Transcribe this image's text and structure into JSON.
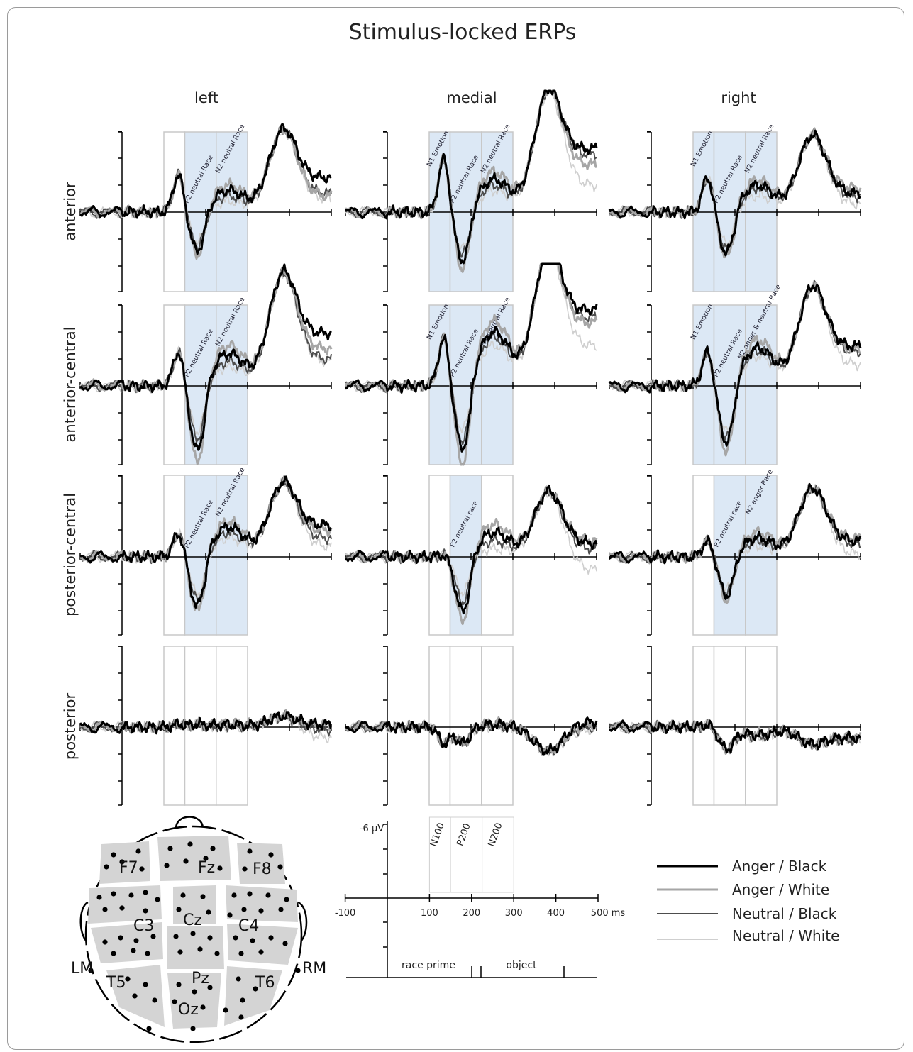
{
  "title": "Stimulus-locked ERPs",
  "columns": [
    "left",
    "medial",
    "right"
  ],
  "rows": [
    "anterior",
    "anterior-central",
    "posterior-central",
    "posterior"
  ],
  "colors": {
    "anger_black": "#000000",
    "anger_white": "#a6a6a6",
    "neutral_black": "#4d4d4d",
    "neutral_white": "#cfcfcf",
    "window_fill": "#dce8f5",
    "window_stroke": "#c8c8c8"
  },
  "legend": {
    "items": [
      {
        "label": "Anger / Black",
        "color": "#000000",
        "width": 3
      },
      {
        "label": "Anger / White",
        "color": "#a6a6a6",
        "width": 3
      },
      {
        "label": "Neutral / Black",
        "color": "#4d4d4d",
        "width": 2
      },
      {
        "label": "Neutral / White",
        "color": "#cfcfcf",
        "width": 2
      }
    ]
  },
  "scale_key": {
    "amplitude_label": "-6 µV",
    "x_ticks": [
      "-100",
      "100",
      "200",
      "300",
      "400",
      "500 ms"
    ],
    "windows": [
      "N100",
      "P200",
      "N200"
    ],
    "segments": [
      "race prime",
      "object"
    ]
  },
  "electrode_map": {
    "labels": [
      "F7",
      "Fz",
      "F8",
      "C3",
      "Cz",
      "C4",
      "LM",
      "T5",
      "Pz",
      "T6",
      "RM",
      "Oz"
    ]
  },
  "chart_data": {
    "type": "line",
    "xlabel": "",
    "ylabel": "",
    "x_unit": "ms",
    "y_unit": "µV",
    "xlim": [
      -100,
      500
    ],
    "ylim": [
      -6,
      3
    ],
    "y_axis": "negative up",
    "windows_ms": {
      "N1": [
        100,
        150
      ],
      "P2": [
        150,
        225
      ],
      "N2": [
        225,
        300
      ]
    },
    "series": [
      {
        "name": "Anger / Black"
      },
      {
        "name": "Anger / White"
      },
      {
        "name": "Neutral / Black"
      },
      {
        "name": "Neutral / White"
      }
    ],
    "panels": [
      {
        "row": "anterior",
        "column": "left",
        "highlighted": [
          "P2",
          "N2"
        ],
        "annotations": [
          {
            "window": "P2",
            "text": "P2 neutral Race"
          },
          {
            "window": "N2",
            "text": "N2 neutral Race"
          }
        ],
        "peaks": {
          "n1": 1.4,
          "p2": 1.5,
          "n2": 0.8,
          "late": 3.0
        },
        "ends": [
          1.3,
          0.6,
          0.7,
          0.5
        ],
        "shifts": [
          0,
          0.2,
          -0.2,
          -0.4
        ]
      },
      {
        "row": "anterior",
        "column": "medial",
        "highlighted": [
          "N1",
          "P2",
          "N2"
        ],
        "annotations": [
          {
            "window": "N1",
            "text": "N1 Emotion"
          },
          {
            "window": "P2",
            "text": "P2 neutral Race"
          },
          {
            "window": "N2",
            "text": "N2 neutral Race"
          }
        ],
        "peaks": {
          "n1": 2.0,
          "p2": 1.9,
          "n2": 1.2,
          "late": 4.4
        },
        "ends": [
          2.4,
          1.8,
          2.2,
          1.0
        ],
        "shifts": [
          0,
          0.3,
          -0.2,
          -0.4
        ]
      },
      {
        "row": "anterior",
        "column": "right",
        "highlighted": [
          "N1",
          "P2",
          "N2"
        ],
        "annotations": [
          {
            "window": "N1",
            "text": "N1 Emotion"
          },
          {
            "window": "P2",
            "text": "P2 neutral Race"
          },
          {
            "window": "N2",
            "text": "N2 neutral Race"
          }
        ],
        "peaks": {
          "n1": 1.3,
          "p2": 1.6,
          "n2": 1.0,
          "late": 2.8
        },
        "ends": [
          0.7,
          0.9,
          0.6,
          0.3
        ],
        "shifts": [
          0,
          0.2,
          -0.1,
          -0.4
        ]
      },
      {
        "row": "anterior-central",
        "column": "left",
        "highlighted": [
          "P2",
          "N2"
        ],
        "annotations": [
          {
            "window": "P2",
            "text": "P2 neutral Race"
          },
          {
            "window": "N2",
            "text": "N2 neutral Race"
          }
        ],
        "peaks": {
          "n1": 1.3,
          "p2": 2.5,
          "n2": 1.2,
          "late": 4.1
        },
        "ends": [
          2.0,
          1.4,
          1.0,
          0.9
        ],
        "shifts": [
          0,
          0.3,
          -0.3,
          -0.5
        ]
      },
      {
        "row": "anterior-central",
        "column": "medial",
        "highlighted": [
          "N1",
          "P2",
          "N2"
        ],
        "annotations": [
          {
            "window": "N1",
            "text": "N1 Emotion"
          },
          {
            "window": "P2",
            "text": "P2 neutral Race"
          },
          {
            "window": "N2",
            "text": "N2 neutral Race"
          }
        ],
        "peaks": {
          "n1": 1.8,
          "p2": 2.5,
          "n2": 2.0,
          "late": 5.0
        },
        "ends": [
          2.9,
          2.4,
          2.6,
          1.5
        ],
        "shifts": [
          0,
          0.4,
          -0.2,
          -0.5
        ]
      },
      {
        "row": "anterior-central",
        "column": "right",
        "highlighted": [
          "N1",
          "P2",
          "N2"
        ],
        "annotations": [
          {
            "window": "N1",
            "text": "N1 Emotion"
          },
          {
            "window": "P2",
            "text": "P2 neutral Race"
          },
          {
            "window": "N2",
            "text": "N2 anger & neutral Race"
          }
        ],
        "peaks": {
          "n1": 1.3,
          "p2": 2.2,
          "n2": 1.4,
          "late": 3.6
        },
        "ends": [
          1.5,
          1.4,
          1.3,
          0.8
        ],
        "shifts": [
          0,
          0.3,
          -0.1,
          -0.3
        ]
      },
      {
        "row": "posterior-central",
        "column": "left",
        "highlighted": [
          "P2",
          "N2"
        ],
        "annotations": [
          {
            "window": "P2",
            "text": "P2 neutral Race"
          },
          {
            "window": "N2",
            "text": "N2 neutral Race"
          }
        ],
        "peaks": {
          "n1": 0.9,
          "p2": 1.9,
          "n2": 1.1,
          "late": 2.7
        },
        "ends": [
          1.2,
          1.0,
          0.7,
          0.4
        ],
        "shifts": [
          0,
          0.2,
          -0.2,
          -0.4
        ]
      },
      {
        "row": "posterior-central",
        "column": "medial",
        "highlighted": [
          "P2"
        ],
        "annotations": [
          {
            "window": "P2",
            "text": "P2 neutral race"
          }
        ],
        "peaks": {
          "n1": 0.1,
          "p2": 2.1,
          "n2": 0.9,
          "late": 2.4
        },
        "ends": [
          0.5,
          0.6,
          0.3,
          -0.5
        ],
        "shifts": [
          0,
          0.3,
          -0.3,
          -0.6
        ]
      },
      {
        "row": "posterior-central",
        "column": "right",
        "highlighted": [
          "P2",
          "N2"
        ],
        "annotations": [
          {
            "window": "P2",
            "text": "P2 neutral race"
          },
          {
            "window": "N2",
            "text": "N2 anger Race"
          }
        ],
        "peaks": {
          "n1": 0.6,
          "p2": 1.5,
          "n2": 0.7,
          "late": 2.5
        },
        "ends": [
          0.6,
          0.7,
          0.5,
          0.1
        ],
        "shifts": [
          0,
          0.2,
          -0.1,
          -0.3
        ]
      },
      {
        "row": "posterior",
        "column": "left",
        "highlighted": [],
        "annotations": [],
        "peaks": {
          "n1": 0.1,
          "p2": -0.1,
          "n2": 0.1,
          "late": 0.4
        },
        "ends": [
          0.1,
          0.1,
          -0.1,
          -0.4
        ],
        "shifts": [
          0,
          0.05,
          -0.05,
          -0.1
        ]
      },
      {
        "row": "posterior",
        "column": "medial",
        "highlighted": [],
        "annotations": [],
        "peaks": {
          "n1": -0.6,
          "p2": 0.6,
          "n2": 0.1,
          "late": -0.9
        },
        "ends": [
          0.2,
          0.1,
          0.0,
          -0.1
        ],
        "shifts": [
          0,
          0.05,
          -0.05,
          -0.1
        ]
      },
      {
        "row": "posterior",
        "column": "right",
        "highlighted": [],
        "annotations": [],
        "peaks": {
          "n1": 0.1,
          "p2": 0.8,
          "n2": -0.3,
          "late": -0.6
        },
        "ends": [
          -0.4,
          -0.4,
          -0.5,
          -0.5
        ],
        "shifts": [
          0,
          0.05,
          -0.05,
          -0.1
        ]
      }
    ]
  }
}
